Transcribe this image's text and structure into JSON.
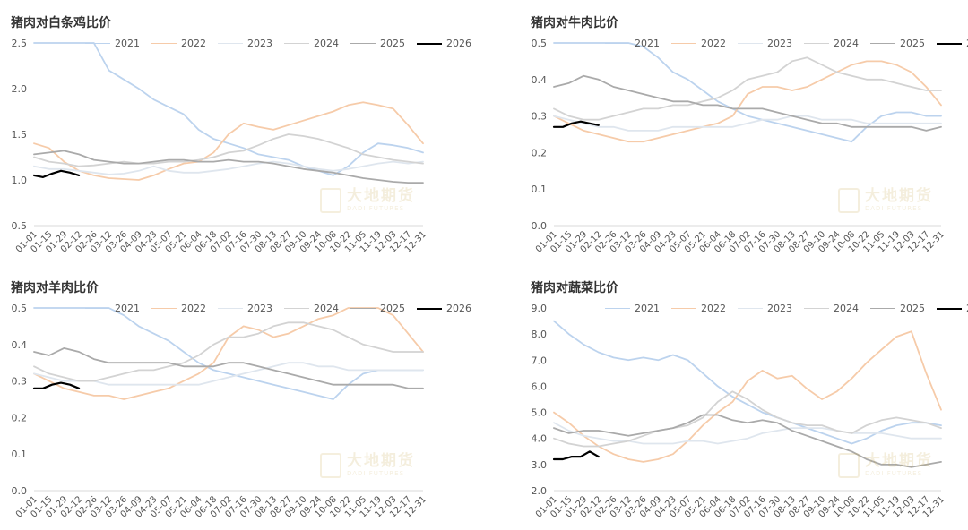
{
  "colors": {
    "2021": "#bcd3ee",
    "2022": "#f6cba9",
    "2023": "#dfe6ee",
    "2024": "#d3d3d3",
    "2025": "#aaaaaa",
    "2026": "#000000"
  },
  "legend": [
    "2021",
    "2022",
    "2023",
    "2024",
    "2025",
    "2026"
  ],
  "watermark": {
    "cn": "大地期货",
    "en": "DADI FUTURES"
  },
  "chart_data": [
    {
      "type": "line",
      "title": "猪肉对白条鸡比价",
      "ylim": [
        0.5,
        2.5
      ],
      "yticks": [
        "0.5",
        "1.0",
        "1.5",
        "2.0",
        "2.5"
      ],
      "xticks": [
        "01-01",
        "01-15",
        "01-29",
        "02-12",
        "02-26",
        "03-12",
        "03-26",
        "04-09",
        "04-23",
        "05-07",
        "05-21",
        "06-04",
        "06-18",
        "07-02",
        "07-16",
        "07-30",
        "08-13",
        "08-27",
        "09-10",
        "09-24",
        "10-08",
        "10-22",
        "11-05",
        "11-19",
        "12-03",
        "12-17",
        "12-31"
      ],
      "series": [
        {
          "name": "2021",
          "values": [
            2.5,
            2.5,
            2.5,
            2.5,
            2.5,
            2.2,
            2.1,
            2.0,
            1.88,
            1.8,
            1.72,
            1.55,
            1.45,
            1.4,
            1.35,
            1.28,
            1.25,
            1.22,
            1.15,
            1.1,
            1.05,
            1.15,
            1.3,
            1.4,
            1.38,
            1.35,
            1.3
          ]
        },
        {
          "name": "2022",
          "values": [
            1.4,
            1.35,
            1.2,
            1.1,
            1.05,
            1.02,
            1.01,
            1.0,
            1.05,
            1.12,
            1.18,
            1.2,
            1.3,
            1.5,
            1.62,
            1.58,
            1.55,
            1.6,
            1.65,
            1.7,
            1.75,
            1.82,
            1.85,
            1.82,
            1.78,
            1.6,
            1.4
          ]
        },
        {
          "name": "2023",
          "values": [
            1.15,
            1.12,
            1.12,
            1.1,
            1.08,
            1.06,
            1.07,
            1.1,
            1.15,
            1.1,
            1.08,
            1.08,
            1.1,
            1.12,
            1.15,
            1.18,
            1.2,
            1.18,
            1.15,
            1.12,
            1.1,
            1.12,
            1.15,
            1.18,
            1.2,
            1.18,
            1.2
          ]
        },
        {
          "name": "2024",
          "values": [
            1.25,
            1.2,
            1.18,
            1.15,
            1.16,
            1.18,
            1.2,
            1.18,
            1.18,
            1.2,
            1.2,
            1.22,
            1.25,
            1.3,
            1.32,
            1.38,
            1.45,
            1.5,
            1.48,
            1.45,
            1.4,
            1.35,
            1.28,
            1.25,
            1.22,
            1.2,
            1.18
          ]
        },
        {
          "name": "2025",
          "values": [
            1.28,
            1.3,
            1.32,
            1.28,
            1.22,
            1.2,
            1.18,
            1.18,
            1.2,
            1.22,
            1.22,
            1.2,
            1.2,
            1.22,
            1.2,
            1.2,
            1.18,
            1.15,
            1.12,
            1.1,
            1.08,
            1.05,
            1.02,
            1.0,
            0.98,
            0.97,
            0.97
          ]
        },
        {
          "name": "2026",
          "values": [
            1.05,
            1.03,
            1.07,
            1.1,
            1.08,
            1.05
          ]
        }
      ]
    },
    {
      "type": "line",
      "title": "猪肉对牛肉比价",
      "ylim": [
        0.0,
        0.5
      ],
      "yticks": [
        "0.0",
        "0.1",
        "0.2",
        "0.3",
        "0.4",
        "0.5"
      ],
      "xticks": [
        "01-01",
        "01-15",
        "01-29",
        "02-12",
        "02-26",
        "03-12",
        "03-26",
        "04-09",
        "04-23",
        "05-07",
        "05-21",
        "06-04",
        "06-18",
        "07-02",
        "07-16",
        "07-30",
        "08-13",
        "08-27",
        "09-10",
        "09-24",
        "10-08",
        "10-22",
        "11-05",
        "11-19",
        "12-03",
        "12-17",
        "12-31"
      ],
      "series": [
        {
          "name": "2021",
          "values": [
            0.5,
            0.5,
            0.5,
            0.5,
            0.5,
            0.5,
            0.49,
            0.46,
            0.42,
            0.4,
            0.37,
            0.34,
            0.32,
            0.3,
            0.29,
            0.28,
            0.27,
            0.26,
            0.25,
            0.24,
            0.23,
            0.27,
            0.3,
            0.31,
            0.31,
            0.3,
            0.3
          ]
        },
        {
          "name": "2022",
          "values": [
            0.3,
            0.28,
            0.26,
            0.25,
            0.24,
            0.23,
            0.23,
            0.24,
            0.25,
            0.26,
            0.27,
            0.28,
            0.3,
            0.36,
            0.38,
            0.38,
            0.37,
            0.38,
            0.4,
            0.42,
            0.44,
            0.45,
            0.45,
            0.44,
            0.42,
            0.38,
            0.33
          ]
        },
        {
          "name": "2023",
          "values": [
            0.3,
            0.29,
            0.28,
            0.27,
            0.27,
            0.26,
            0.26,
            0.26,
            0.27,
            0.27,
            0.27,
            0.27,
            0.27,
            0.28,
            0.29,
            0.29,
            0.3,
            0.3,
            0.29,
            0.29,
            0.29,
            0.28,
            0.28,
            0.28,
            0.28,
            0.28,
            0.28
          ]
        },
        {
          "name": "2024",
          "values": [
            0.32,
            0.3,
            0.29,
            0.29,
            0.3,
            0.31,
            0.32,
            0.32,
            0.33,
            0.33,
            0.34,
            0.35,
            0.37,
            0.4,
            0.41,
            0.42,
            0.45,
            0.46,
            0.44,
            0.42,
            0.41,
            0.4,
            0.4,
            0.39,
            0.38,
            0.37,
            0.37
          ]
        },
        {
          "name": "2025",
          "values": [
            0.38,
            0.39,
            0.41,
            0.4,
            0.38,
            0.37,
            0.36,
            0.35,
            0.34,
            0.34,
            0.33,
            0.33,
            0.32,
            0.32,
            0.32,
            0.31,
            0.3,
            0.29,
            0.28,
            0.28,
            0.27,
            0.27,
            0.27,
            0.27,
            0.27,
            0.26,
            0.27
          ]
        },
        {
          "name": "2026",
          "values": [
            0.27,
            0.27,
            0.28,
            0.285,
            0.28,
            0.275
          ]
        }
      ]
    },
    {
      "type": "line",
      "title": "猪肉对羊肉比价",
      "ylim": [
        0.0,
        0.5
      ],
      "yticks": [
        "0.0",
        "0.1",
        "0.2",
        "0.3",
        "0.4",
        "0.5"
      ],
      "xticks": [
        "01-01",
        "01-15",
        "01-29",
        "02-12",
        "02-26",
        "03-12",
        "03-26",
        "04-09",
        "04-23",
        "05-07",
        "05-21",
        "06-04",
        "06-18",
        "07-02",
        "07-16",
        "07-30",
        "08-13",
        "08-27",
        "09-10",
        "09-24",
        "10-08",
        "10-22",
        "11-05",
        "11-19",
        "12-03",
        "12-17",
        "12-31"
      ],
      "series": [
        {
          "name": "2021",
          "values": [
            0.5,
            0.5,
            0.5,
            0.5,
            0.5,
            0.5,
            0.48,
            0.45,
            0.43,
            0.41,
            0.38,
            0.35,
            0.33,
            0.32,
            0.31,
            0.3,
            0.29,
            0.28,
            0.27,
            0.26,
            0.25,
            0.29,
            0.32,
            0.33,
            0.33,
            0.33,
            0.33
          ]
        },
        {
          "name": "2022",
          "values": [
            0.32,
            0.3,
            0.28,
            0.27,
            0.26,
            0.26,
            0.25,
            0.26,
            0.27,
            0.28,
            0.3,
            0.32,
            0.35,
            0.42,
            0.45,
            0.44,
            0.42,
            0.43,
            0.45,
            0.47,
            0.48,
            0.5,
            0.5,
            0.5,
            0.48,
            0.43,
            0.38
          ]
        },
        {
          "name": "2023",
          "values": [
            0.32,
            0.31,
            0.3,
            0.3,
            0.3,
            0.29,
            0.29,
            0.29,
            0.29,
            0.29,
            0.29,
            0.29,
            0.3,
            0.31,
            0.32,
            0.33,
            0.34,
            0.35,
            0.35,
            0.34,
            0.34,
            0.33,
            0.33,
            0.33,
            0.33,
            0.33,
            0.33
          ]
        },
        {
          "name": "2024",
          "values": [
            0.34,
            0.32,
            0.31,
            0.3,
            0.3,
            0.31,
            0.32,
            0.33,
            0.33,
            0.34,
            0.35,
            0.37,
            0.4,
            0.42,
            0.42,
            0.43,
            0.45,
            0.46,
            0.46,
            0.45,
            0.44,
            0.42,
            0.4,
            0.39,
            0.38,
            0.38,
            0.38
          ]
        },
        {
          "name": "2025",
          "values": [
            0.38,
            0.37,
            0.39,
            0.38,
            0.36,
            0.35,
            0.35,
            0.35,
            0.35,
            0.35,
            0.34,
            0.34,
            0.34,
            0.35,
            0.35,
            0.34,
            0.33,
            0.32,
            0.31,
            0.3,
            0.29,
            0.29,
            0.29,
            0.29,
            0.29,
            0.28,
            0.28
          ]
        },
        {
          "name": "2026",
          "values": [
            0.28,
            0.28,
            0.29,
            0.295,
            0.29,
            0.28
          ]
        }
      ]
    },
    {
      "type": "line",
      "title": "猪肉对蔬菜比价",
      "ylim": [
        2.0,
        9.0
      ],
      "yticks": [
        "2.0",
        "3.0",
        "4.0",
        "5.0",
        "6.0",
        "7.0",
        "8.0",
        "9.0"
      ],
      "xticks": [
        "01-01",
        "01-15",
        "01-29",
        "02-12",
        "02-26",
        "03-12",
        "03-26",
        "04-09",
        "04-23",
        "05-07",
        "05-21",
        "06-04",
        "06-18",
        "07-02",
        "07-16",
        "07-30",
        "08-13",
        "08-27",
        "09-10",
        "09-24",
        "10-08",
        "10-22",
        "11-05",
        "11-19",
        "12-03",
        "12-17",
        "12-31"
      ],
      "series": [
        {
          "name": "2021",
          "values": [
            8.5,
            8.0,
            7.6,
            7.3,
            7.1,
            7.0,
            7.1,
            7.0,
            7.2,
            7.0,
            6.5,
            6.0,
            5.6,
            5.3,
            5.0,
            4.8,
            4.6,
            4.4,
            4.2,
            4.0,
            3.8,
            4.0,
            4.3,
            4.5,
            4.6,
            4.6,
            4.5
          ]
        },
        {
          "name": "2022",
          "values": [
            5.0,
            4.6,
            4.1,
            3.7,
            3.4,
            3.2,
            3.1,
            3.2,
            3.4,
            3.9,
            4.5,
            5.0,
            5.4,
            6.2,
            6.6,
            6.3,
            6.4,
            5.9,
            5.5,
            5.8,
            6.3,
            6.9,
            7.4,
            7.9,
            8.1,
            6.5,
            5.1
          ]
        },
        {
          "name": "2023",
          "values": [
            4.6,
            4.3,
            4.1,
            4.0,
            3.9,
            3.9,
            3.8,
            3.8,
            3.8,
            3.9,
            3.9,
            3.8,
            3.9,
            4.0,
            4.2,
            4.3,
            4.4,
            4.4,
            4.4,
            4.3,
            4.2,
            4.2,
            4.2,
            4.1,
            4.0,
            4.0,
            4.0
          ]
        },
        {
          "name": "2024",
          "values": [
            4.0,
            3.8,
            3.7,
            3.7,
            3.8,
            3.9,
            4.1,
            4.3,
            4.4,
            4.5,
            4.8,
            5.4,
            5.8,
            5.5,
            5.1,
            4.8,
            4.6,
            4.5,
            4.5,
            4.3,
            4.2,
            4.5,
            4.7,
            4.8,
            4.7,
            4.6,
            4.4
          ]
        },
        {
          "name": "2025",
          "values": [
            4.4,
            4.2,
            4.3,
            4.3,
            4.2,
            4.1,
            4.2,
            4.3,
            4.4,
            4.6,
            4.9,
            4.9,
            4.7,
            4.6,
            4.7,
            4.6,
            4.3,
            4.1,
            3.9,
            3.7,
            3.5,
            3.2,
            3.0,
            3.0,
            2.9,
            3.0,
            3.1
          ]
        },
        {
          "name": "2026",
          "values": [
            3.2,
            3.2,
            3.3,
            3.3,
            3.5,
            3.3
          ]
        }
      ]
    }
  ]
}
